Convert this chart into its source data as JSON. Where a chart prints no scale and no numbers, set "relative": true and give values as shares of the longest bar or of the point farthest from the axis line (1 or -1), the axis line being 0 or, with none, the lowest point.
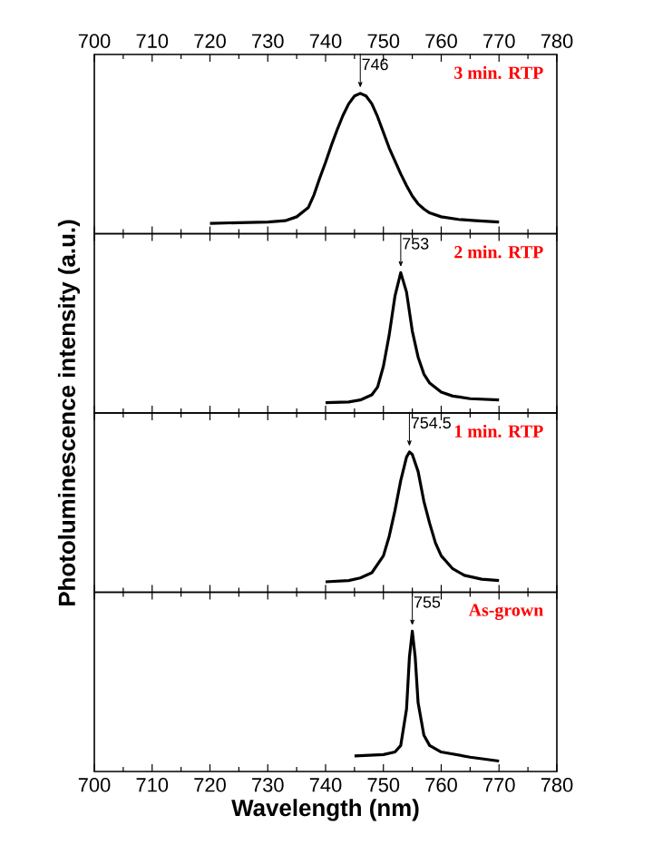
{
  "chart_data": [
    {
      "type": "line",
      "relative": true,
      "title": "3 min. RTP",
      "ylabel": "Photoluminescence intensity (a.u.)",
      "xlim": [
        700,
        780
      ],
      "xticks": [
        700,
        710,
        720,
        730,
        740,
        750,
        760,
        770,
        780
      ],
      "tick_labels": "x",
      "annotations": [
        {
          "text": "746",
          "x": 746,
          "y": 1
        }
      ],
      "series": [
        {
          "color": "#000000",
          "x": [
            720,
            725,
            730,
            733,
            735,
            737,
            738,
            739,
            740,
            741,
            742,
            743,
            744,
            745,
            746,
            747,
            748,
            749,
            750,
            751,
            752,
            753,
            754,
            755,
            756,
            757,
            758,
            760,
            763,
            766,
            770
          ],
          "values": [
            0,
            0.005,
            0.01,
            0.02,
            0.05,
            0.12,
            0.22,
            0.35,
            0.47,
            0.6,
            0.72,
            0.83,
            0.92,
            0.98,
            1.0,
            0.98,
            0.92,
            0.82,
            0.7,
            0.58,
            0.48,
            0.38,
            0.29,
            0.21,
            0.15,
            0.11,
            0.08,
            0.05,
            0.03,
            0.02,
            0.01
          ]
        }
      ]
    },
    {
      "type": "line",
      "relative": true,
      "title": "2 min. RTP",
      "xlim": [
        700,
        780
      ],
      "xticks": [
        700,
        710,
        720,
        730,
        740,
        750,
        760,
        770,
        780
      ],
      "tick_labels": false,
      "annotations": [
        {
          "text": "753",
          "x": 753,
          "y": 1
        }
      ],
      "series": [
        {
          "color": "#000000",
          "x": [
            740,
            744,
            746,
            748,
            749,
            750,
            751,
            752,
            753,
            754,
            755,
            756,
            757,
            758,
            760,
            762,
            765,
            770
          ],
          "values": [
            0,
            0.005,
            0.02,
            0.06,
            0.12,
            0.28,
            0.52,
            0.82,
            1.0,
            0.85,
            0.55,
            0.35,
            0.22,
            0.15,
            0.08,
            0.05,
            0.03,
            0.02
          ]
        }
      ]
    },
    {
      "type": "line",
      "relative": true,
      "title": "1 min. RTP",
      "xlim": [
        700,
        780
      ],
      "xticks": [
        700,
        710,
        720,
        730,
        740,
        750,
        760,
        770,
        780
      ],
      "tick_labels": false,
      "annotations": [
        {
          "text": "754.5",
          "x": 754.5,
          "y": 1
        }
      ],
      "series": [
        {
          "color": "#000000",
          "x": [
            740,
            744,
            746,
            748,
            750,
            751,
            752,
            753,
            754,
            754.5,
            755,
            756,
            757,
            758,
            759,
            760,
            762,
            764,
            767,
            770
          ],
          "values": [
            0,
            0.01,
            0.03,
            0.07,
            0.2,
            0.35,
            0.55,
            0.78,
            0.96,
            1.0,
            0.98,
            0.85,
            0.62,
            0.45,
            0.3,
            0.2,
            0.1,
            0.05,
            0.02,
            0.01
          ]
        }
      ]
    },
    {
      "type": "line",
      "relative": true,
      "title": "As-grown",
      "xlabel": "Wavelength (nm)",
      "xlim": [
        700,
        780
      ],
      "xticks": [
        700,
        710,
        720,
        730,
        740,
        750,
        760,
        770,
        780
      ],
      "tick_labels": "x",
      "annotations": [
        {
          "text": "755",
          "x": 755,
          "y": 1
        }
      ],
      "series": [
        {
          "color": "#000000",
          "x": [
            745,
            750,
            752,
            753,
            754,
            754.5,
            755,
            755.5,
            756,
            757,
            758,
            760,
            765,
            770
          ],
          "values": [
            0.04,
            0.05,
            0.07,
            0.12,
            0.4,
            0.8,
            1.0,
            0.8,
            0.45,
            0.2,
            0.12,
            0.07,
            0.03,
            0
          ]
        }
      ]
    }
  ]
}
